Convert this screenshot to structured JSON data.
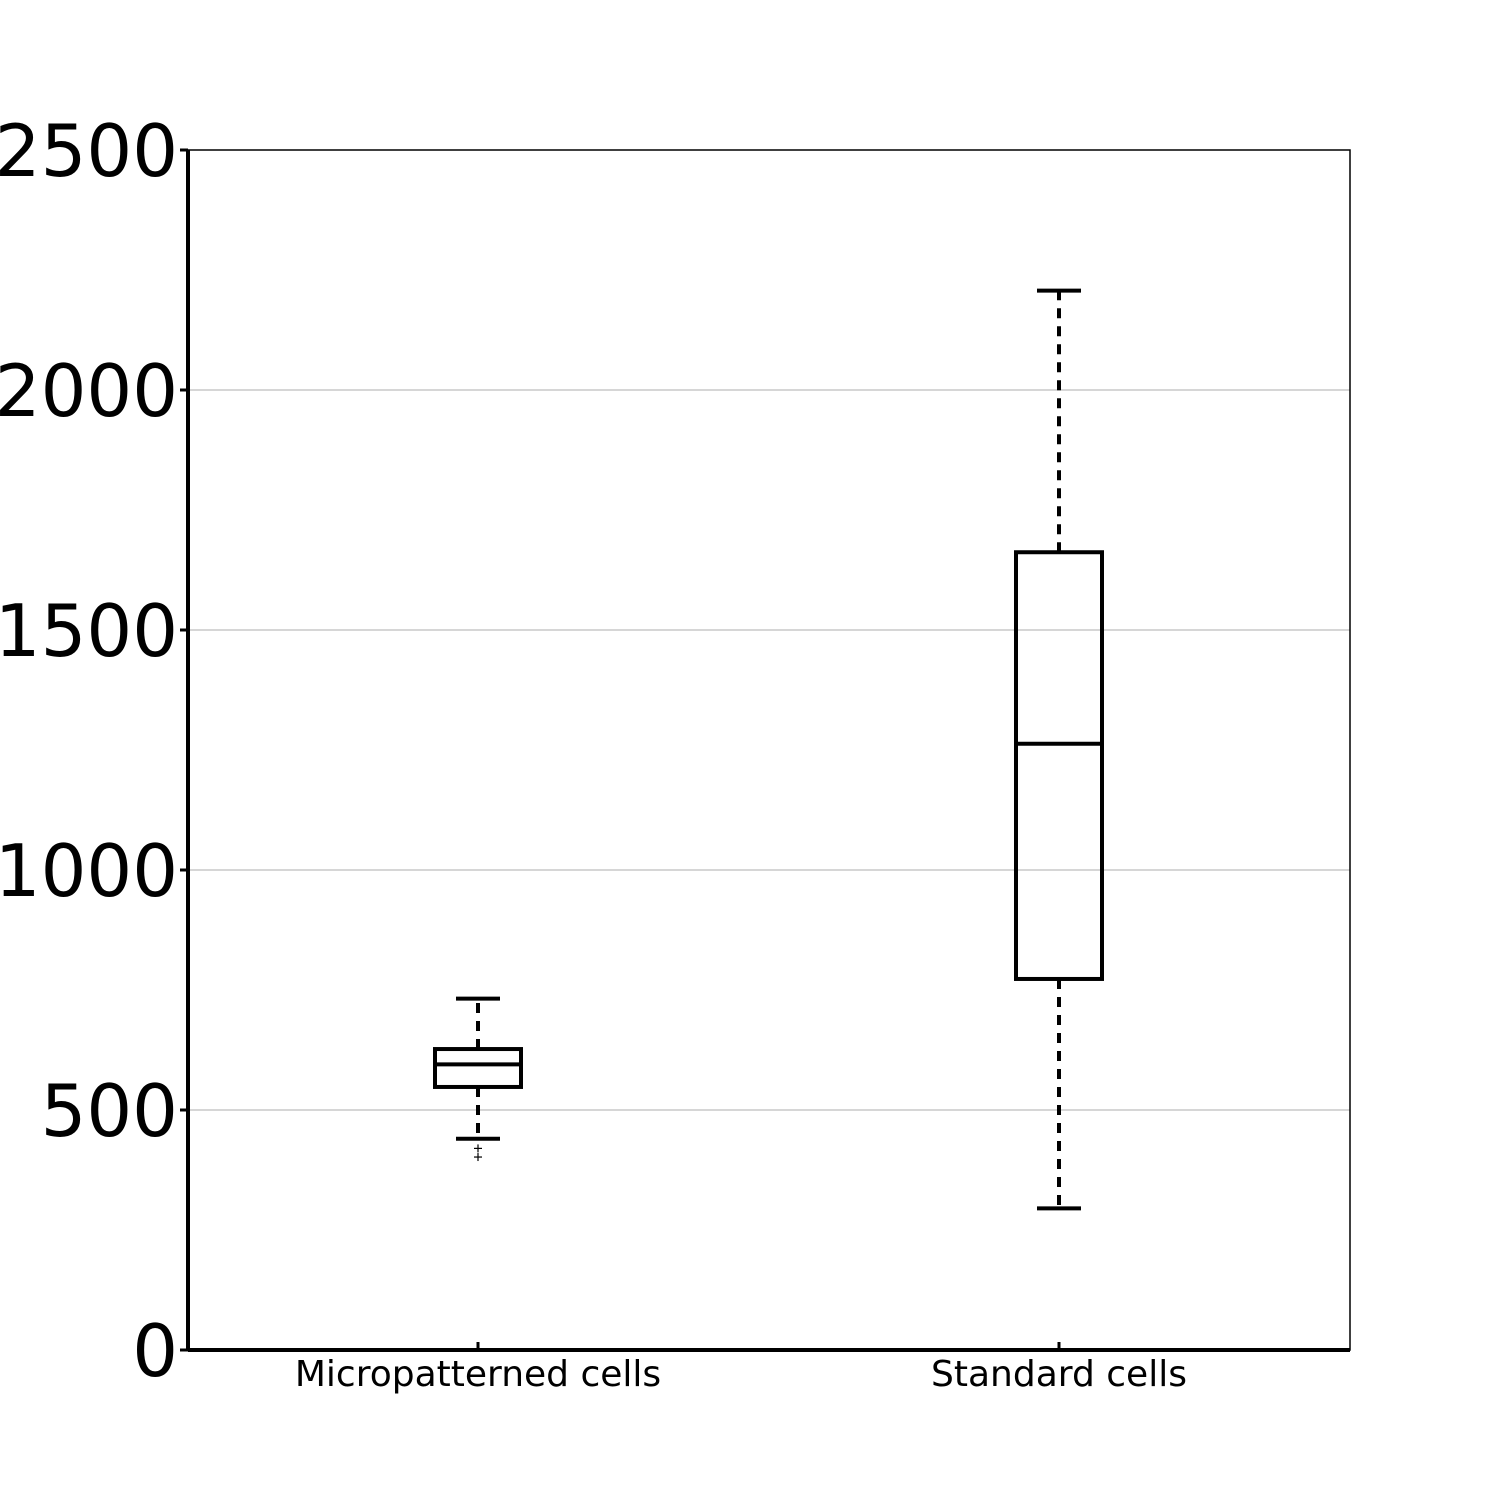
{
  "chart_data": {
    "type": "boxplot",
    "title": "",
    "xlabel": "",
    "ylabel": "",
    "ylim": [
      0,
      2500
    ],
    "yticks": [
      0,
      500,
      1000,
      1500,
      2000,
      2500
    ],
    "grid": {
      "y": true,
      "x": false
    },
    "categories": [
      "Micropatterned cells",
      "Standard cells"
    ],
    "boxes": [
      {
        "category": "Micropatterned cells",
        "whisker_low": 440,
        "q1": 548,
        "median": 595,
        "q3": 627,
        "whisker_high": 732,
        "outliers": [
          420,
          402
        ]
      },
      {
        "category": "Standard cells",
        "whisker_low": 295,
        "q1": 773,
        "median": 1263,
        "q3": 1662,
        "whisker_high": 2207,
        "outliers": []
      }
    ],
    "colors": {
      "box": "#000000",
      "grid": "#c8c8c8",
      "axis": "#000000",
      "background": "#ffffff"
    }
  }
}
